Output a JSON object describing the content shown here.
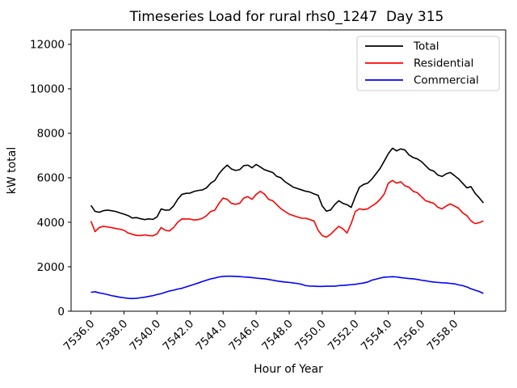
{
  "chart_data": {
    "type": "line",
    "title": "Timeseries Load for rural rhs0_1247  Day 315",
    "xlabel": "Hour of Year",
    "ylabel": "kW total",
    "grid": false,
    "legend_position": "upper right",
    "x_start": 7536.0,
    "x_step": 0.25,
    "xlim": [
      7534.8,
      7561.1
    ],
    "ylim": [
      0,
      12650
    ],
    "x_tick_values": [
      7536,
      7538,
      7540,
      7542,
      7544,
      7546,
      7548,
      7550,
      7552,
      7554,
      7556,
      7558
    ],
    "x_tick_labels": [
      "7536.0",
      "7538.0",
      "7540.0",
      "7542.0",
      "7544.0",
      "7546.0",
      "7548.0",
      "7550.0",
      "7552.0",
      "7554.0",
      "7556.0",
      "7558.0"
    ],
    "y_tick_values": [
      0,
      2000,
      4000,
      6000,
      8000,
      10000,
      12000
    ],
    "series": [
      {
        "name": "Total",
        "color": "#000000",
        "values": [
          4760,
          4490,
          4450,
          4520,
          4545,
          4520,
          4485,
          4420,
          4365,
          4300,
          4190,
          4210,
          4160,
          4120,
          4150,
          4130,
          4240,
          4600,
          4545,
          4550,
          4730,
          5030,
          5250,
          5300,
          5310,
          5390,
          5430,
          5455,
          5550,
          5760,
          5880,
          6180,
          6400,
          6570,
          6400,
          6330,
          6365,
          6545,
          6570,
          6450,
          6600,
          6485,
          6365,
          6300,
          6240,
          6060,
          6000,
          5820,
          5700,
          5575,
          5515,
          5455,
          5395,
          5360,
          5275,
          5210,
          4730,
          4500,
          4550,
          4790,
          4970,
          4850,
          4790,
          4670,
          5150,
          5575,
          5700,
          5760,
          5940,
          6180,
          6420,
          6750,
          7090,
          7330,
          7210,
          7300,
          7250,
          7030,
          6910,
          6850,
          6730,
          6545,
          6365,
          6300,
          6120,
          6060,
          6180,
          6240,
          6100,
          5950,
          5750,
          5550,
          5600,
          5300,
          5100,
          4870
        ]
      },
      {
        "name": "Residential",
        "color": "#ff0000",
        "values": [
          4050,
          3580,
          3760,
          3820,
          3790,
          3760,
          3720,
          3690,
          3640,
          3520,
          3460,
          3410,
          3400,
          3430,
          3400,
          3390,
          3480,
          3760,
          3640,
          3610,
          3760,
          4000,
          4150,
          4145,
          4145,
          4100,
          4120,
          4180,
          4300,
          4485,
          4545,
          4850,
          5090,
          5030,
          4850,
          4810,
          4850,
          5090,
          5150,
          5030,
          5250,
          5390,
          5270,
          5030,
          4970,
          4790,
          4610,
          4485,
          4365,
          4300,
          4240,
          4180,
          4180,
          4120,
          4060,
          3640,
          3400,
          3330,
          3455,
          3640,
          3820,
          3700,
          3520,
          3940,
          4485,
          4605,
          4570,
          4605,
          4730,
          4850,
          5030,
          5270,
          5760,
          5880,
          5760,
          5820,
          5640,
          5575,
          5395,
          5330,
          5150,
          4970,
          4910,
          4850,
          4670,
          4605,
          4730,
          4825,
          4730,
          4630,
          4420,
          4300,
          4060,
          3940,
          3980,
          4060
        ]
      },
      {
        "name": "Commercial",
        "color": "#0000ff",
        "values": [
          850,
          875,
          825,
          790,
          750,
          700,
          665,
          630,
          605,
          580,
          570,
          580,
          605,
          630,
          665,
          700,
          750,
          790,
          850,
          910,
          945,
          995,
          1030,
          1090,
          1150,
          1210,
          1270,
          1335,
          1395,
          1455,
          1490,
          1540,
          1565,
          1575,
          1575,
          1565,
          1555,
          1540,
          1530,
          1510,
          1490,
          1470,
          1455,
          1430,
          1395,
          1360,
          1335,
          1310,
          1295,
          1270,
          1245,
          1210,
          1150,
          1130,
          1125,
          1115,
          1115,
          1125,
          1125,
          1125,
          1150,
          1160,
          1175,
          1195,
          1210,
          1240,
          1270,
          1310,
          1395,
          1440,
          1490,
          1530,
          1540,
          1550,
          1540,
          1510,
          1490,
          1470,
          1455,
          1430,
          1395,
          1370,
          1335,
          1310,
          1295,
          1280,
          1270,
          1250,
          1230,
          1185,
          1150,
          1090,
          1010,
          945,
          885,
          800
        ]
      }
    ]
  }
}
